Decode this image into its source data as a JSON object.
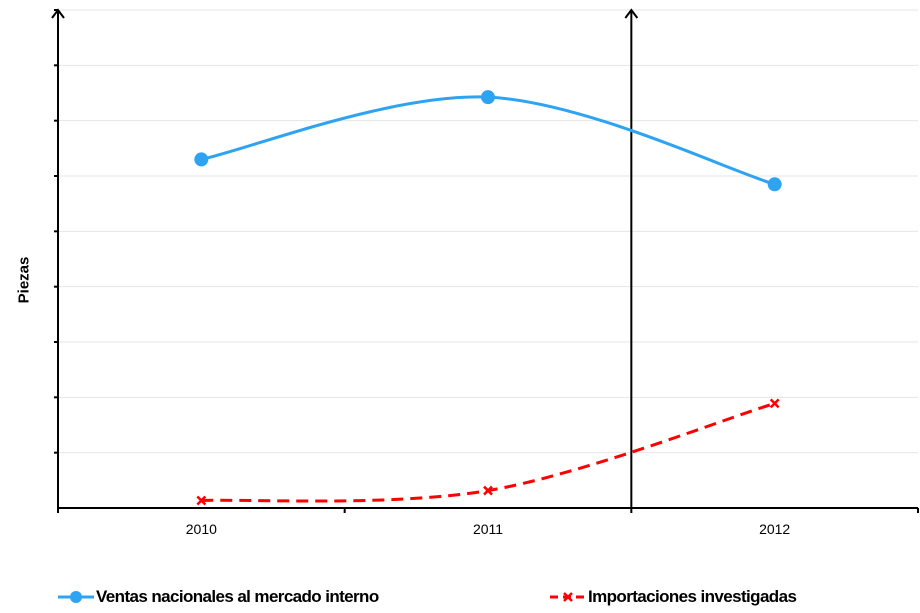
{
  "chart_data": {
    "type": "line",
    "title": "",
    "xlabel": "",
    "ylabel": "Piezas",
    "categories": [
      "2010",
      "2011",
      "2012"
    ],
    "ylim": [
      0,
      100
    ],
    "grid": true,
    "legend_position": "bottom",
    "divider_after_category": "2011",
    "series": [
      {
        "name": "Ventas nacionales al mercado interno",
        "values": [
          70,
          82.5,
          65
        ],
        "color": "#2ea3f2",
        "style": "solid",
        "marker": "circle"
      },
      {
        "name": "Importaciones investigadas",
        "values": [
          1.5,
          3.5,
          21
        ],
        "color": "#ff0000",
        "style": "dashed",
        "marker": "x"
      }
    ]
  }
}
